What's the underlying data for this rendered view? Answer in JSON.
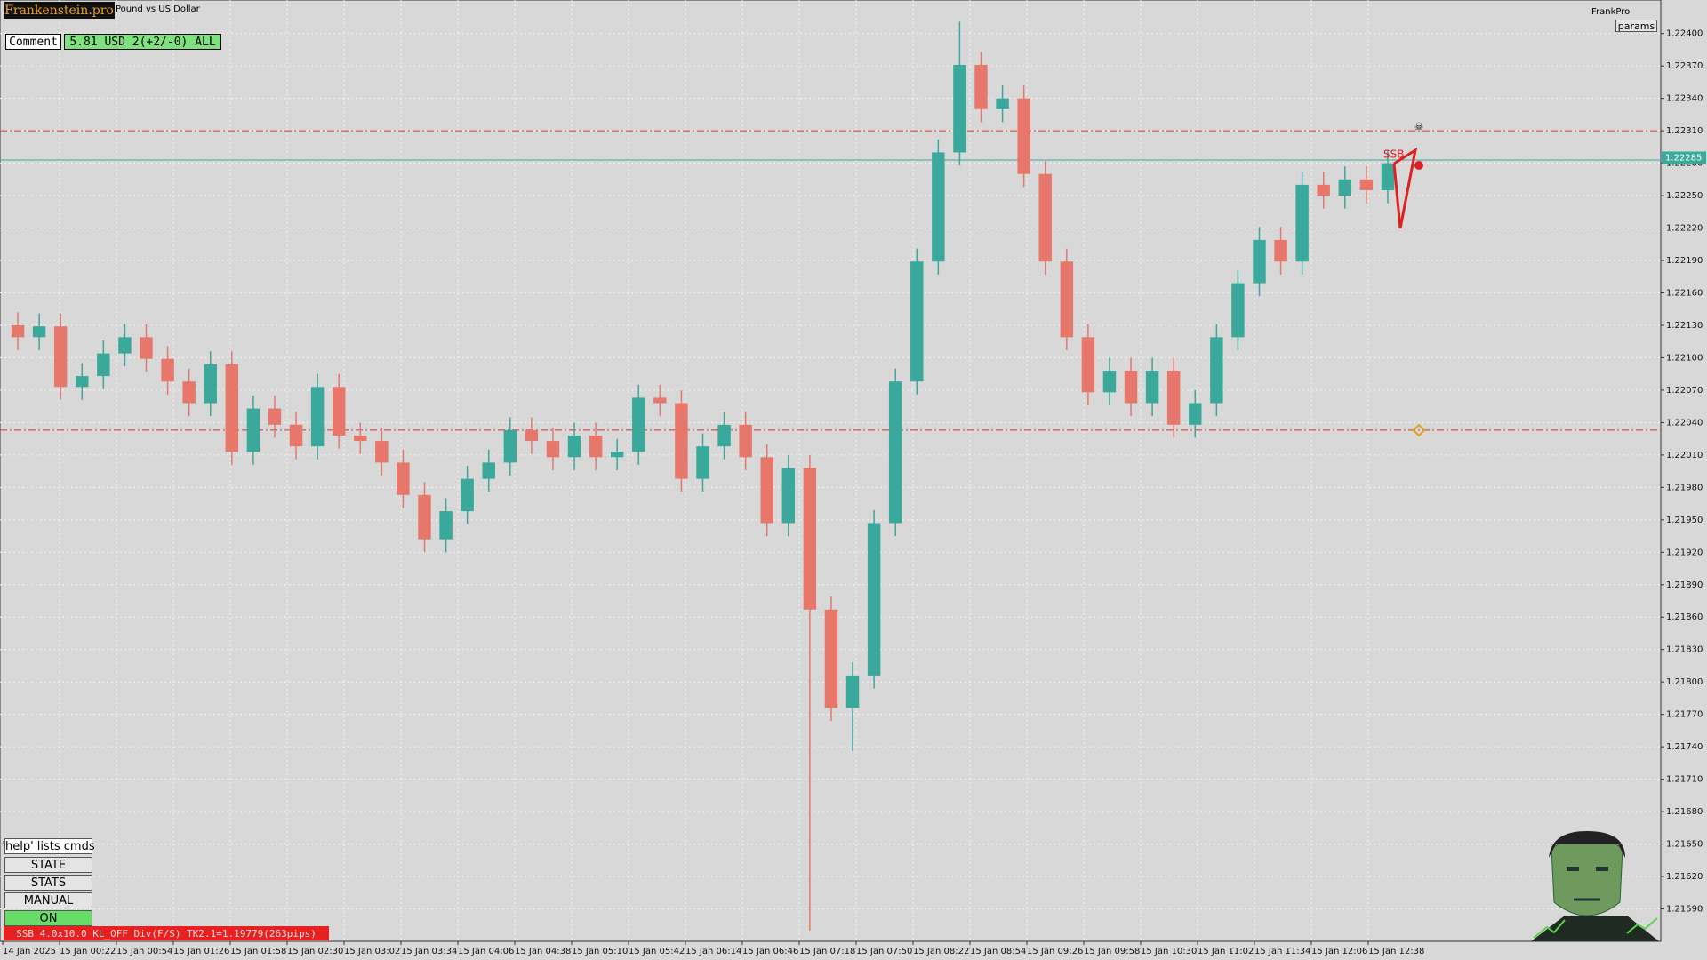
{
  "chart_data": {
    "type": "candlestick",
    "up_color": "#3aa89a",
    "down_color": "#e8776b",
    "open": [
      1.2213,
      1.22119,
      1.22129,
      1.22073,
      1.22083,
      1.22104,
      1.22119,
      1.22099,
      1.22078,
      1.22058,
      1.22094,
      1.22013,
      1.22053,
      1.22038,
      1.22018,
      1.22073,
      1.22028,
      1.22023,
      1.22003,
      1.21973,
      1.21932,
      1.21958,
      1.21988,
      1.22003,
      1.22033,
      1.22023,
      1.22008,
      1.22028,
      1.22008,
      1.22013,
      1.22063,
      1.22058,
      1.21988,
      1.22018,
      1.22038,
      1.22008,
      1.21947,
      1.21998,
      1.21867,
      1.21776,
      1.21806,
      1.21947,
      1.22078,
      1.22189,
      1.2229,
      1.22371,
      1.2233,
      1.2234,
      1.2227,
      1.22189,
      1.22119,
      1.22068,
      1.22088,
      1.22058,
      1.22088,
      1.22038,
      1.22058,
      1.22119,
      1.22169,
      1.22209,
      1.22189,
      1.2226,
      1.2225,
      1.22265,
      1.22255
    ],
    "high": [
      1.22142,
      1.22141,
      1.22141,
      1.22095,
      1.22116,
      1.22131,
      1.22131,
      1.22111,
      1.2209,
      1.22106,
      1.22106,
      1.22065,
      1.22065,
      1.2205,
      1.22085,
      1.22085,
      1.2204,
      1.22035,
      1.22015,
      1.21985,
      1.2197,
      1.22,
      1.22015,
      1.22045,
      1.22045,
      1.22035,
      1.2204,
      1.2204,
      1.22025,
      1.22075,
      1.22075,
      1.2207,
      1.2203,
      1.2205,
      1.2205,
      1.2202,
      1.2201,
      1.2201,
      1.21879,
      1.21818,
      1.21959,
      1.2209,
      1.22201,
      1.22302,
      1.22411,
      1.22383,
      1.22352,
      1.22352,
      1.22282,
      1.22201,
      1.22131,
      1.221,
      1.221,
      1.221,
      1.221,
      1.2207,
      1.22131,
      1.22181,
      1.22221,
      1.22221,
      1.22272,
      1.22272,
      1.22277,
      1.22277,
      1.22292
    ],
    "low": [
      1.22107,
      1.22107,
      1.22061,
      1.22061,
      1.22071,
      1.22092,
      1.22087,
      1.22066,
      1.22046,
      1.22046,
      1.22001,
      1.22001,
      1.22026,
      1.22006,
      1.22006,
      1.22016,
      1.22011,
      1.21991,
      1.21961,
      1.2192,
      1.2192,
      1.21946,
      1.21976,
      1.21991,
      1.22011,
      1.21996,
      1.21996,
      1.21996,
      1.21996,
      1.22001,
      1.22046,
      1.21976,
      1.21976,
      1.22006,
      1.21996,
      1.21935,
      1.21935,
      1.2157,
      1.21764,
      1.21736,
      1.21794,
      1.21935,
      1.22066,
      1.22177,
      1.22278,
      1.22318,
      1.22318,
      1.22258,
      1.22177,
      1.22107,
      1.22056,
      1.22056,
      1.22046,
      1.22046,
      1.22026,
      1.22026,
      1.22046,
      1.22107,
      1.22157,
      1.22177,
      1.22177,
      1.22238,
      1.22238,
      1.22243,
      1.22243
    ],
    "close": [
      1.22119,
      1.22129,
      1.22073,
      1.22083,
      1.22104,
      1.22119,
      1.22099,
      1.22078,
      1.22058,
      1.22094,
      1.22013,
      1.22053,
      1.22038,
      1.22018,
      1.22073,
      1.22028,
      1.22023,
      1.22003,
      1.21973,
      1.21932,
      1.21958,
      1.21988,
      1.22003,
      1.22033,
      1.22023,
      1.22008,
      1.22028,
      1.22008,
      1.22013,
      1.22063,
      1.22058,
      1.21988,
      1.22018,
      1.22038,
      1.22008,
      1.21947,
      1.21998,
      1.21867,
      1.21776,
      1.21806,
      1.21947,
      1.22078,
      1.22189,
      1.2229,
      1.22371,
      1.2233,
      1.2234,
      1.2227,
      1.22189,
      1.22119,
      1.22068,
      1.22088,
      1.22058,
      1.22088,
      1.22038,
      1.22058,
      1.22119,
      1.22169,
      1.22209,
      1.22189,
      1.2226,
      1.2225,
      1.22265,
      1.22255,
      1.2228
    ],
    "time_labels": [
      "14 Jan 2025",
      "15 Jan 00:22",
      "15 Jan 00:54",
      "15 Jan 01:26",
      "15 Jan 01:58",
      "15 Jan 02:30",
      "15 Jan 03:02",
      "15 Jan 03:34",
      "15 Jan 04:06",
      "15 Jan 04:38",
      "15 Jan 05:10",
      "15 Jan 05:42",
      "15 Jan 06:14",
      "15 Jan 06:46",
      "15 Jan 07:18",
      "15 Jan 07:50",
      "15 Jan 08:22",
      "15 Jan 08:54",
      "15 Jan 09:26",
      "15 Jan 09:58",
      "15 Jan 10:30",
      "15 Jan 11:02",
      "15 Jan 11:34",
      "15 Jan 12:06",
      "15 Jan 12:38"
    ],
    "ylim": [
      1.2156,
      1.22431
    ],
    "yticks": [
      {
        "value": 1.224,
        "label": "1.22400"
      },
      {
        "value": 1.2237,
        "label": "1.22370"
      },
      {
        "value": 1.2234,
        "label": "1.22340"
      },
      {
        "value": 1.2231,
        "label": "1.22310"
      },
      {
        "value": 1.2228,
        "label": "1.22280"
      },
      {
        "value": 1.2225,
        "label": "1.22250"
      },
      {
        "value": 1.2222,
        "label": "1.22220"
      },
      {
        "value": 1.2219,
        "label": "1.22190"
      },
      {
        "value": 1.2216,
        "label": "1.22160"
      },
      {
        "value": 1.2213,
        "label": "1.22130"
      },
      {
        "value": 1.221,
        "label": "1.22100"
      },
      {
        "value": 1.2207,
        "label": "1.22070"
      },
      {
        "value": 1.2204,
        "label": "1.22040"
      },
      {
        "value": 1.2201,
        "label": "1.22010"
      },
      {
        "value": 1.2198,
        "label": "1.21980"
      },
      {
        "value": 1.2195,
        "label": "1.21950"
      },
      {
        "value": 1.2192,
        "label": "1.21920"
      },
      {
        "value": 1.2189,
        "label": "1.21890"
      },
      {
        "value": 1.2186,
        "label": "1.21860"
      },
      {
        "value": 1.2183,
        "label": "1.21830"
      },
      {
        "value": 1.218,
        "label": "1.21800"
      },
      {
        "value": 1.2177,
        "label": "1.21770"
      },
      {
        "value": 1.2174,
        "label": "1.21740"
      },
      {
        "value": 1.2171,
        "label": "1.21710"
      },
      {
        "value": 1.2168,
        "label": "1.21680"
      },
      {
        "value": 1.2165,
        "label": "1.21650"
      },
      {
        "value": 1.2162,
        "label": "1.21620"
      },
      {
        "value": 1.2159,
        "label": "1.21590"
      }
    ],
    "grid": true,
    "levels": [
      {
        "value": 1.2231,
        "color": "#e03030",
        "style": "dashdot"
      },
      {
        "value": 1.22033,
        "color": "#e03030",
        "style": "dashdot"
      },
      {
        "value": 1.22283,
        "color": "#3aa89a",
        "style": "solid"
      }
    ],
    "price_label": 1.22285,
    "annotation": "SSB"
  },
  "ui": {
    "logo": "Frankenstein.pro",
    "symbol": "Pound vs US Dollar",
    "brand": "FrankPro",
    "params": "params",
    "comment_label": "Comment",
    "comment_value": "5.81 USD 2(+2/-0) ALL",
    "buttons": [
      "'help' lists cmds",
      "STATE",
      "STATS",
      "MANUAL",
      "ON"
    ],
    "status": "SSB 4.0x10.0 KL_OFF Div(F/S) TK2.1=1.19779(263pips)"
  }
}
